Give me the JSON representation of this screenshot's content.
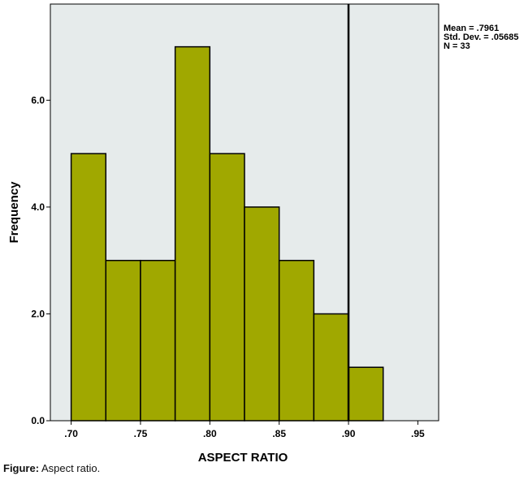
{
  "chart_data": {
    "type": "bar",
    "xlabel": "ASPECT RATIO",
    "ylabel": "Frequency",
    "bin_edges": [
      0.7,
      0.725,
      0.75,
      0.775,
      0.8,
      0.825,
      0.85,
      0.875,
      0.9,
      0.925
    ],
    "values": [
      5,
      3,
      3,
      7,
      5,
      4,
      3,
      2,
      1
    ],
    "x_ticks": [
      ".70",
      ".75",
      ".80",
      ".85",
      ".90",
      ".95"
    ],
    "x_tick_values": [
      0.7,
      0.75,
      0.8,
      0.85,
      0.9,
      0.95
    ],
    "y_ticks": [
      "0.0",
      "2.0",
      "4.0",
      "6.0"
    ],
    "y_tick_values": [
      0,
      2,
      4,
      6
    ],
    "xlim": [
      0.685,
      0.965
    ],
    "ylim": [
      0,
      7.8
    ],
    "reference_line_x": 0.9,
    "bar_color": "#a0a800",
    "plot_background": "#e6ebeb",
    "grid": false
  },
  "stats": {
    "mean": "Mean = .7961",
    "std_dev": "Std. Dev. = .05685",
    "n": "N = 33"
  },
  "caption": {
    "label": "Figure:",
    "text": " Aspect ratio."
  }
}
